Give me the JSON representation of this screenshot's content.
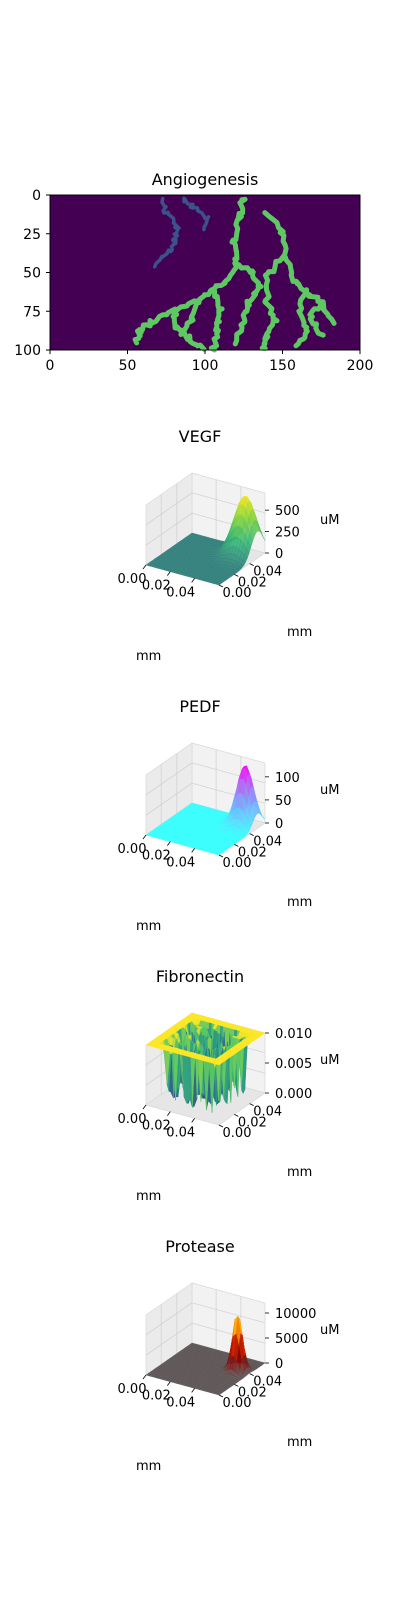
{
  "chart_data": [
    {
      "type": "heatmap",
      "title": "Angiogenesis",
      "xlim": [
        0,
        200
      ],
      "ylim": [
        100,
        0
      ],
      "xticks": [
        "0",
        "50",
        "100",
        "150",
        "200"
      ],
      "yticks": [
        "0",
        "25",
        "50",
        "75",
        "100"
      ],
      "colors": {
        "background": "#440154",
        "vessel_main": "#5ec962",
        "vessel_minor": "#3b528b"
      },
      "vessel_paths": [
        {
          "series": "main",
          "points": [
            [
              125,
              2
            ],
            [
              122,
              15
            ],
            [
              118,
              30
            ],
            [
              120,
              45
            ],
            [
              115,
              55
            ],
            [
              105,
              62
            ],
            [
              95,
              68
            ],
            [
              80,
              75
            ],
            [
              65,
              82
            ],
            [
              58,
              88
            ],
            [
              55,
              95
            ]
          ]
        },
        {
          "series": "main",
          "points": [
            [
              105,
              62
            ],
            [
              110,
              75
            ],
            [
              108,
              88
            ],
            [
              105,
              100
            ]
          ]
        },
        {
          "series": "main",
          "points": [
            [
              120,
              45
            ],
            [
              130,
              50
            ],
            [
              135,
              60
            ],
            [
              128,
              70
            ],
            [
              125,
              82
            ],
            [
              120,
              95
            ]
          ]
        },
        {
          "series": "main",
          "points": [
            [
              140,
              10
            ],
            [
              150,
              25
            ],
            [
              152,
              40
            ],
            [
              158,
              55
            ],
            [
              165,
              62
            ],
            [
              175,
              70
            ],
            [
              182,
              82
            ]
          ]
        },
        {
          "series": "main",
          "points": [
            [
              150,
              40
            ],
            [
              140,
              52
            ],
            [
              140,
              68
            ],
            [
              145,
              80
            ],
            [
              140,
              92
            ],
            [
              138,
              100
            ]
          ]
        },
        {
          "series": "main",
          "points": [
            [
              165,
              62
            ],
            [
              160,
              75
            ],
            [
              165,
              88
            ],
            [
              160,
              98
            ]
          ]
        },
        {
          "series": "main",
          "points": [
            [
              80,
              75
            ],
            [
              82,
              85
            ],
            [
              90,
              92
            ],
            [
              98,
              99
            ]
          ]
        },
        {
          "series": "main",
          "points": [
            [
              95,
              68
            ],
            [
              92,
              80
            ],
            [
              85,
              90
            ]
          ]
        },
        {
          "series": "main",
          "points": [
            [
              175,
              70
            ],
            [
              168,
              78
            ],
            [
              175,
              90
            ]
          ]
        },
        {
          "series": "minor",
          "points": [
            [
              72,
              3
            ],
            [
              75,
              12
            ],
            [
              82,
              20
            ],
            [
              80,
              30
            ],
            [
              75,
              38
            ],
            [
              68,
              45
            ]
          ]
        },
        {
          "series": "minor",
          "points": [
            [
              85,
              2
            ],
            [
              92,
              8
            ],
            [
              102,
              15
            ],
            [
              100,
              22
            ]
          ]
        }
      ]
    },
    {
      "type": "surface",
      "title": "VEGF",
      "xticks": [
        "0.00",
        "0.02",
        "0.04"
      ],
      "yticks": [
        "0.00",
        "0.02",
        "0.04"
      ],
      "zticks": [
        "0",
        "250",
        "500"
      ],
      "zlabel": "uM",
      "xlabel": "mm",
      "ylabel": "mm",
      "zlim": [
        0,
        700
      ],
      "peak": {
        "x": 0.05,
        "y": 0.05,
        "height": 690,
        "spread": 0.008
      },
      "colormap": [
        "#2f7d7a",
        "#35b779",
        "#90d743",
        "#fde725"
      ]
    },
    {
      "type": "surface",
      "title": "PEDF",
      "xticks": [
        "0.00",
        "0.02",
        "0.04"
      ],
      "yticks": [
        "0.00",
        "0.02",
        "0.04"
      ],
      "zticks": [
        "0",
        "50",
        "100"
      ],
      "zlabel": "uM",
      "xlabel": "mm",
      "ylabel": "mm",
      "zlim": [
        0,
        130
      ],
      "peak": {
        "x": 0.05,
        "y": 0.05,
        "height": 130,
        "spread": 0.006
      },
      "colormap": [
        "#33ffff",
        "#6fb8ff",
        "#b06ff0",
        "#ff00ff"
      ]
    },
    {
      "type": "surface",
      "title": "Fibronectin",
      "xticks": [
        "0.00",
        "0.02",
        "0.04"
      ],
      "yticks": [
        "0.00",
        "0.02",
        "0.04"
      ],
      "zticks": [
        "0.000",
        "0.005",
        "0.010"
      ],
      "zlabel": "uM",
      "xlabel": "mm",
      "ylabel": "mm",
      "zlim": [
        0,
        0.01
      ],
      "plateau": 0.01,
      "colormap": [
        "#440154",
        "#3b528b",
        "#21918c",
        "#5ec962",
        "#fde725"
      ]
    },
    {
      "type": "surface",
      "title": "Protease",
      "xticks": [
        "0.00",
        "0.02",
        "0.04"
      ],
      "yticks": [
        "0.00",
        "0.02",
        "0.04"
      ],
      "zticks": [
        "0",
        "5000",
        "10000"
      ],
      "zlabel": "uM",
      "xlabel": "mm",
      "ylabel": "mm",
      "zlim": [
        0,
        12000
      ],
      "peak": {
        "x": 0.05,
        "y": 0.04,
        "height": 11500,
        "spread": 0.0035
      },
      "colormap": [
        "#5a5252",
        "#8b0000",
        "#e03000",
        "#ffb000",
        "#ffffd0"
      ]
    }
  ]
}
